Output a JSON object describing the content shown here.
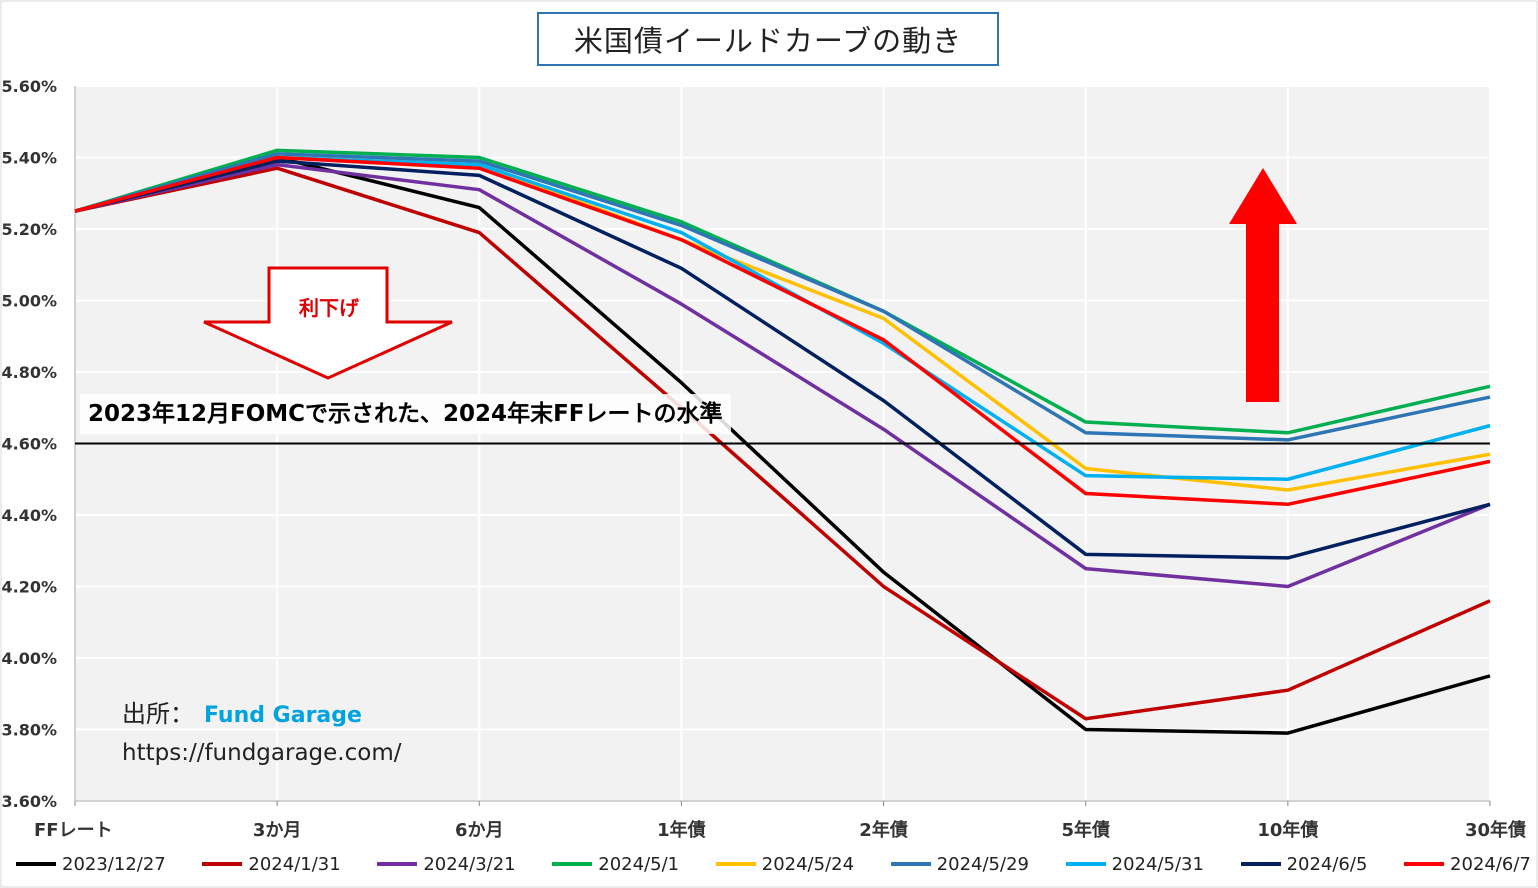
{
  "chart_data": {
    "type": "line",
    "title": "米国債イールドカーブの動き",
    "categories": [
      "FFレート",
      "3か月",
      "6か月",
      "1年債",
      "2年債",
      "5年債",
      "10年債",
      "30年債"
    ],
    "y_ticks": [
      "3.60%",
      "3.80%",
      "4.00%",
      "4.20%",
      "4.40%",
      "4.60%",
      "4.80%",
      "5.00%",
      "5.20%",
      "5.40%",
      "5.60%"
    ],
    "ylim": [
      3.6,
      5.6
    ],
    "grid": true,
    "series": [
      {
        "name": "2023/12/27",
        "color": "#000000",
        "values": [
          5.25,
          5.4,
          5.26,
          4.77,
          4.24,
          3.8,
          3.79,
          3.95
        ]
      },
      {
        "name": "2024/1/31",
        "color": "#c00000",
        "values": [
          5.25,
          5.37,
          5.19,
          4.7,
          4.2,
          3.83,
          3.91,
          4.16
        ]
      },
      {
        "name": "2024/3/21",
        "color": "#7030a0",
        "values": [
          5.25,
          5.38,
          5.31,
          4.99,
          4.64,
          4.25,
          4.2,
          4.43
        ]
      },
      {
        "name": "2024/5/1",
        "color": "#00b050",
        "values": [
          5.25,
          5.42,
          5.4,
          5.22,
          4.97,
          4.66,
          4.63,
          4.76
        ]
      },
      {
        "name": "2024/5/24",
        "color": "#ffc000",
        "values": [
          5.25,
          5.4,
          5.38,
          5.17,
          4.95,
          4.53,
          4.47,
          4.57
        ]
      },
      {
        "name": "2024/5/29",
        "color": "#2e75b6",
        "values": [
          5.25,
          5.41,
          5.39,
          5.21,
          4.97,
          4.63,
          4.61,
          4.73
        ]
      },
      {
        "name": "2024/5/31",
        "color": "#00b0f0",
        "values": [
          5.25,
          5.4,
          5.38,
          5.19,
          4.88,
          4.51,
          4.5,
          4.65
        ]
      },
      {
        "name": "2024/6/5",
        "color": "#002060",
        "values": [
          5.25,
          5.39,
          5.35,
          5.09,
          4.72,
          4.29,
          4.28,
          4.43
        ]
      },
      {
        "name": "2024/6/7",
        "color": "#ff0000",
        "values": [
          5.25,
          5.4,
          5.37,
          5.17,
          4.89,
          4.46,
          4.43,
          4.55
        ]
      }
    ],
    "reference_line": {
      "value": 4.6,
      "label": "2023年12月FOMCで示された、2024年末FFレートの水準"
    },
    "annotations": {
      "down_arrow_label": "利下げ"
    }
  },
  "source": {
    "label": "出所：",
    "name": "Fund Garage",
    "url": "https://fundgarage.com/"
  }
}
